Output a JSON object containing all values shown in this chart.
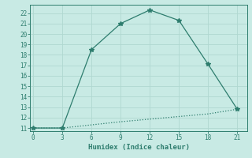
{
  "title": "",
  "xlabel": "Humidex (Indice chaleur)",
  "ylabel": "",
  "bg_color": "#c8eae4",
  "line_color": "#2e7d6e",
  "grid_color_major": "#b0d8d0",
  "grid_color_minor": "#d0eeea",
  "line1_x": [
    0,
    3,
    6,
    9,
    12,
    15,
    18,
    21
  ],
  "line1_y": [
    11.0,
    11.0,
    18.5,
    21.0,
    22.3,
    21.3,
    17.1,
    12.8
  ],
  "line2_x": [
    0,
    3,
    6,
    9,
    12,
    15,
    18,
    21
  ],
  "line2_y": [
    11.0,
    11.0,
    11.3,
    11.6,
    11.85,
    12.1,
    12.35,
    12.8
  ],
  "xlim": [
    -0.3,
    22.0
  ],
  "ylim": [
    10.7,
    22.8
  ],
  "xticks": [
    0,
    3,
    6,
    9,
    12,
    15,
    18,
    21
  ],
  "yticks": [
    11,
    12,
    13,
    14,
    15,
    16,
    17,
    18,
    19,
    20,
    21,
    22
  ],
  "marker": "*",
  "marker_size": 4,
  "linewidth": 0.9
}
